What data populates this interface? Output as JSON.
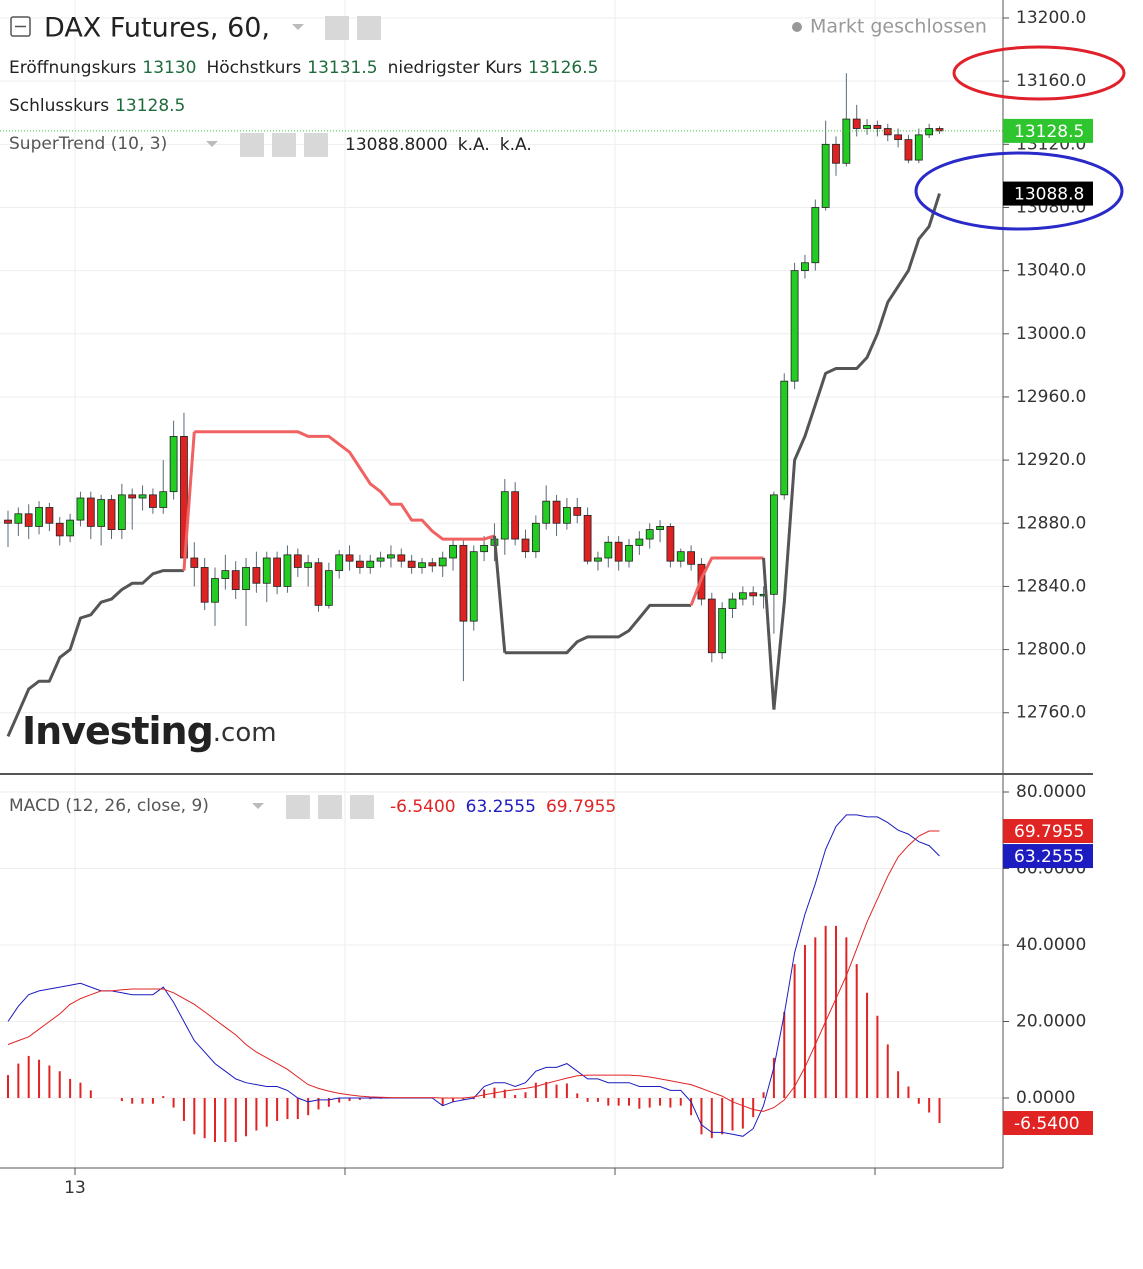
{
  "chart_data": [
    {
      "type": "candlestick",
      "title": "DAX Futures, 60,",
      "status": "Markt geschlossen",
      "ohlc_labels": [
        "Eröffnungskurs",
        "Höchstkurs",
        "niedrigster Kurs",
        "Schlusskurs"
      ],
      "watermark": "Investing",
      "watermark_suffix": ".com",
      "time_label": "13",
      "up_color": "#22cc22",
      "down_color": "#dd2222",
      "open": [
        12882,
        12880,
        12886,
        12878,
        12890,
        12880,
        12872,
        12882,
        12896,
        12878,
        12895,
        12876,
        12898,
        12896,
        12898,
        12890,
        12900,
        12935,
        12858,
        12852,
        12830,
        12845,
        12850,
        12838,
        12852,
        12842,
        12858,
        12840,
        12860,
        12852,
        12855,
        12828,
        12850,
        12860,
        12856,
        12852,
        12856,
        12858,
        12860,
        12856,
        12852,
        12855,
        12853,
        12858,
        12866,
        12818,
        12862,
        12866,
        12870,
        12900,
        12870,
        12862,
        12880,
        12894,
        12880,
        12890,
        12885,
        12856,
        12858,
        12868,
        12856,
        12866,
        12870,
        12876,
        12878,
        12856,
        12862,
        12854,
        12832,
        12798,
        12826,
        12832,
        12836,
        12834,
        12835,
        12898,
        12970,
        13040,
        13045,
        13080,
        13120,
        13108,
        13136,
        13130,
        13132,
        13130,
        13126,
        13123,
        13110,
        13126,
        13130
      ],
      "high": [
        12888,
        12890,
        12892,
        12894,
        12893,
        12884,
        12886,
        12900,
        12900,
        12898,
        12898,
        12905,
        12902,
        12904,
        12902,
        12920,
        12945,
        12950,
        12868,
        12858,
        12852,
        12860,
        12856,
        12858,
        12862,
        12862,
        12862,
        12866,
        12864,
        12860,
        12858,
        12855,
        12863,
        12866,
        12860,
        12860,
        12862,
        12866,
        12864,
        12860,
        12858,
        12858,
        12862,
        12870,
        12870,
        12866,
        12872,
        12880,
        12908,
        12906,
        12876,
        12885,
        12904,
        12898,
        12896,
        12896,
        12890,
        12862,
        12872,
        12872,
        12870,
        12875,
        12880,
        12882,
        12880,
        12864,
        12866,
        12858,
        12836,
        12830,
        12836,
        12840,
        12840,
        12840,
        12900,
        12975,
        13045,
        13050,
        13085,
        13135,
        13125,
        13165,
        13145,
        13136,
        13135,
        13133,
        13130,
        13126,
        13130,
        13133,
        13131.5
      ],
      "low": [
        12865,
        12872,
        12870,
        12873,
        12875,
        12866,
        12868,
        12878,
        12870,
        12866,
        12870,
        12870,
        12876,
        12888,
        12886,
        12886,
        12895,
        12852,
        12840,
        12825,
        12815,
        12838,
        12832,
        12815,
        12836,
        12830,
        12835,
        12836,
        12846,
        12840,
        12824,
        12826,
        12845,
        12850,
        12848,
        12848,
        12852,
        12852,
        12852,
        12848,
        12848,
        12849,
        12846,
        12850,
        12780,
        12812,
        12856,
        12856,
        12860,
        12866,
        12858,
        12858,
        12876,
        12872,
        12876,
        12880,
        12854,
        12850,
        12852,
        12850,
        12852,
        12860,
        12864,
        12868,
        12852,
        12852,
        12850,
        12828,
        12792,
        12794,
        12820,
        12828,
        12828,
        12826,
        12810,
        12895,
        12965,
        13035,
        13040,
        13078,
        13100,
        13106,
        13125,
        13126,
        13125,
        13122,
        13118,
        13108,
        13108,
        13124,
        13126.5
      ],
      "close": [
        12880,
        12886,
        12878,
        12890,
        12880,
        12872,
        12882,
        12896,
        12878,
        12895,
        12876,
        12898,
        12896,
        12898,
        12890,
        12900,
        12935,
        12858,
        12852,
        12830,
        12845,
        12850,
        12838,
        12852,
        12842,
        12858,
        12840,
        12860,
        12852,
        12855,
        12828,
        12850,
        12860,
        12856,
        12852,
        12856,
        12858,
        12860,
        12856,
        12852,
        12855,
        12853,
        12858,
        12866,
        12818,
        12862,
        12866,
        12870,
        12900,
        12870,
        12862,
        12880,
        12894,
        12880,
        12890,
        12885,
        12856,
        12858,
        12868,
        12856,
        12866,
        12870,
        12876,
        12878,
        12856,
        12862,
        12854,
        12832,
        12798,
        12826,
        12832,
        12836,
        12834,
        12835,
        12898,
        12970,
        13040,
        13045,
        13080,
        13120,
        13108,
        13136,
        13130,
        13132,
        13130,
        13126,
        13123,
        13110,
        13126,
        13130,
        13128.5
      ],
      "supertrend": {
        "name": "SuperTrend (10, 3)",
        "value_label": "13088.8000",
        "na_labels": [
          "k.A.",
          "k.A."
        ],
        "above_color": "#f06262",
        "below_color": "#555555",
        "values": [
          12745,
          12760,
          12775,
          12780,
          12780,
          12795,
          12800,
          12820,
          12822,
          12830,
          12832,
          12838,
          12842,
          12842,
          12848,
          12850,
          12850,
          12850,
          12938,
          12938,
          12938,
          12938,
          12938,
          12938,
          12938,
          12938,
          12938,
          12938,
          12938,
          12935,
          12935,
          12935,
          12930,
          12925,
          12915,
          12905,
          12900,
          12892,
          12892,
          12882,
          12882,
          12875,
          12870,
          12870,
          12870,
          12870,
          12870,
          12872,
          12798,
          12798,
          12798,
          12798,
          12798,
          12798,
          12798,
          12805,
          12808,
          12808,
          12808,
          12808,
          12812,
          12820,
          12828,
          12828,
          12828,
          12828,
          12828,
          12845,
          12858,
          12858,
          12858,
          12858,
          12858,
          12858,
          12762,
          12830,
          12920,
          12935,
          12955,
          12975,
          12978,
          12978,
          12978,
          12985,
          13000,
          13020,
          13030,
          13040,
          13060,
          13068,
          13088.8
        ]
      },
      "ylim": [
        12721.2,
        13211.4
      ],
      "yticks": [
        {
          "value": 12760,
          "label": "12760.0"
        },
        {
          "value": 12800,
          "label": "12800.0"
        },
        {
          "value": 12840,
          "label": "12840.0"
        },
        {
          "value": 12880,
          "label": "12880.0"
        },
        {
          "value": 12920,
          "label": "12920.0"
        },
        {
          "value": 12960,
          "label": "12960.0"
        },
        {
          "value": 13000,
          "label": "13000.0"
        },
        {
          "value": 13040,
          "label": "13040.0"
        },
        {
          "value": 13080,
          "label": "13080.0"
        },
        {
          "value": 13120,
          "label": "13120.0"
        },
        {
          "value": 13160,
          "label": "13160.0"
        },
        {
          "value": 13200,
          "label": "13200.0"
        }
      ],
      "grid": true
    },
    {
      "type": "macd",
      "title": "MACD (12, 26, close, 9)",
      "series": [
        {
          "kind": "bar",
          "color": "#e02424",
          "value_label": "-6.5400",
          "values": [
            6,
            9,
            11,
            10,
            8.5,
            7,
            5,
            4,
            2,
            0,
            0,
            -0.8,
            -1.5,
            -1.5,
            -1.5,
            0.5,
            -2.5,
            -6,
            -9.5,
            -10.5,
            -11.5,
            -11.5,
            -11.5,
            -10,
            -8.5,
            -7.5,
            -6,
            -5.5,
            -5.5,
            -4.5,
            -3,
            -2.3,
            -1.2,
            -0.8,
            -0.5,
            -0.3,
            -0.2,
            -0.1,
            -0.1,
            -0.1,
            -0.1,
            -0.1,
            -2,
            -1,
            -0.5,
            -0.3,
            2.2,
            2.7,
            2.2,
            0.8,
            1.5,
            4,
            4.2,
            3.5,
            3.8,
            1.2,
            -1,
            -1,
            -2,
            -2,
            -2,
            -2.8,
            -2.5,
            -2,
            -2.5,
            -2,
            -4.5,
            -9.5,
            -10.5,
            -9.5,
            -8.5,
            -8,
            -5,
            1.5,
            10.5,
            22.5,
            35,
            40,
            42,
            45,
            45,
            42,
            35,
            27.5,
            21.5,
            14,
            7,
            3,
            -1.5,
            -3.8,
            -6.54
          ]
        },
        {
          "kind": "line",
          "color": "#1c1cc0",
          "value_label": "63.2555",
          "values": [
            20,
            24,
            27,
            28,
            28.5,
            29,
            29.5,
            30,
            29,
            28,
            28,
            27.5,
            27,
            27,
            27,
            29,
            25,
            20,
            15,
            12,
            9,
            7,
            5,
            4,
            3.5,
            3,
            3,
            2,
            0,
            -1,
            -0.5,
            -0.5,
            0,
            0,
            0,
            0,
            0,
            0,
            0,
            0,
            0,
            0,
            -2,
            -1,
            -0.5,
            0,
            3,
            4,
            4,
            3,
            4,
            7,
            8,
            8,
            9,
            7,
            5,
            5,
            4,
            4,
            4,
            3,
            3,
            3,
            2,
            2,
            -1,
            -7,
            -9,
            -9,
            -9.5,
            -10,
            -8,
            -2,
            8,
            22,
            38,
            48,
            56,
            65,
            71,
            74,
            74,
            73.5,
            73.5,
            72,
            70,
            69,
            67,
            66,
            63.2555
          ]
        },
        {
          "kind": "line",
          "color": "#e02424",
          "value_label": "69.7955",
          "values": [
            14,
            15,
            16,
            18,
            20,
            22,
            24.5,
            26,
            27,
            28,
            28,
            28.3,
            28.5,
            28.5,
            28.5,
            28.5,
            27.5,
            26,
            24.5,
            22.5,
            20.5,
            18.5,
            16.5,
            14,
            12,
            10.5,
            9,
            7.5,
            5.5,
            3.5,
            2.5,
            1.8,
            1.2,
            0.8,
            0.5,
            0.3,
            0.2,
            0.1,
            0.1,
            0.1,
            0.1,
            0.1,
            0,
            0,
            0,
            0.3,
            0.8,
            1.3,
            1.8,
            2.2,
            2.5,
            3,
            3.8,
            4.5,
            5.2,
            5.8,
            6,
            6,
            6,
            6,
            6,
            5.8,
            5.5,
            5,
            4.5,
            4,
            3.5,
            2.5,
            1.5,
            0.5,
            -1,
            -2,
            -3,
            -3.5,
            -2.5,
            -0.5,
            3,
            8,
            14,
            20,
            26,
            32,
            39,
            46,
            52,
            58,
            63,
            66,
            68.5,
            69.8,
            69.7955
          ]
        }
      ],
      "ylim": [
        -18.3,
        83.66
      ],
      "yticks": [
        {
          "value": 0,
          "label": "0.0000"
        },
        {
          "value": 20,
          "label": "20.0000"
        },
        {
          "value": 40,
          "label": "40.0000"
        },
        {
          "value": 60,
          "label": "60.0000"
        },
        {
          "value": 80,
          "label": "80.0000"
        }
      ],
      "grid": true
    }
  ]
}
